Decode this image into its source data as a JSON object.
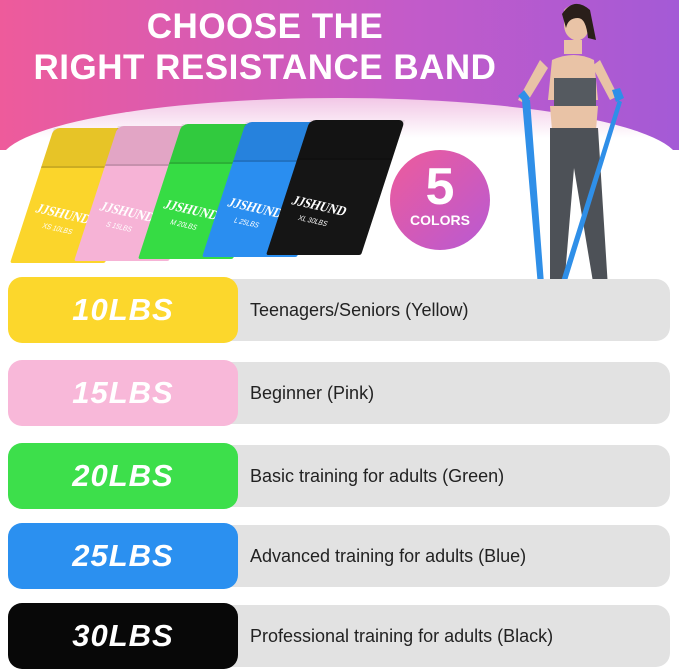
{
  "header": {
    "line1": "CHOOSE THE",
    "line2": "RIGHT RESISTANCE BAND"
  },
  "badge": {
    "number": "5",
    "label": "COLORS"
  },
  "bands": [
    {
      "brand": "JJSHUND",
      "size": "XS 10LBS",
      "color": "#fbd52b"
    },
    {
      "brand": "JJSHUND",
      "size": "S 15LBS",
      "color": "#f6b3d6"
    },
    {
      "brand": "JJSHUND",
      "size": "M 20LBS",
      "color": "#36dc44"
    },
    {
      "brand": "JJSHUND",
      "size": "L 25LBS",
      "color": "#2a8ef0"
    },
    {
      "brand": "JJSHUND",
      "size": "XL 30LBS",
      "color": "#151515"
    }
  ],
  "rows": [
    {
      "weight": "10LBS",
      "description": "Teenagers/Seniors (Yellow)",
      "color": "#fcd72c"
    },
    {
      "weight": "15LBS",
      "description": "Beginner (Pink)",
      "color": "#f8b8d9"
    },
    {
      "weight": "20LBS",
      "description": "Basic training for adults (Green)",
      "color": "#3ddf4b"
    },
    {
      "weight": "25LBS",
      "description": "Advanced training for adults (Blue)",
      "color": "#2b90f0"
    },
    {
      "weight": "30LBS",
      "description": "Professional training for adults (Black)",
      "color": "#080808"
    }
  ]
}
